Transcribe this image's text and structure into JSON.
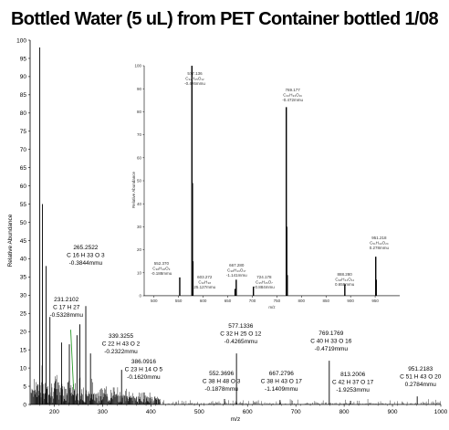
{
  "title": "Bottled Water (5 uL) from PET Container bottled 1/08",
  "chart_data": [
    {
      "type": "line",
      "title": "Bottled Water (5 uL) from PET Container bottled 1/08",
      "xlabel": "m/z",
      "ylabel": "Relative Abundance",
      "xlim": [
        150,
        1000
      ],
      "ylim": [
        0,
        100
      ],
      "xticks": [
        200,
        300,
        400,
        500,
        600,
        700,
        800,
        900,
        1000
      ],
      "yticks": [
        0,
        5,
        10,
        15,
        20,
        25,
        30,
        35,
        40,
        45,
        50,
        55,
        60,
        65,
        70,
        75,
        80,
        85,
        90,
        95,
        100
      ],
      "series": [
        {
          "peaks": [
            {
              "x": 170.0,
              "y": 98
            },
            {
              "x": 175.5,
              "y": 55
            },
            {
              "x": 183.0,
              "y": 38
            },
            {
              "x": 191.0,
              "y": 24
            },
            {
              "x": 215.0,
              "y": 17
            },
            {
              "x": 231.2102,
              "y": 16.5
            },
            {
              "x": 247.0,
              "y": 19
            },
            {
              "x": 253.0,
              "y": 22
            },
            {
              "x": 265.2522,
              "y": 27
            },
            {
              "x": 275.0,
              "y": 14
            },
            {
              "x": 339.3255,
              "y": 9.5
            },
            {
              "x": 386.0916,
              "y": 3.3
            },
            {
              "x": 552.3696,
              "y": 1.5
            },
            {
              "x": 577.1336,
              "y": 14
            },
            {
              "x": 667.2796,
              "y": 1.2
            },
            {
              "x": 769.1769,
              "y": 12
            },
            {
              "x": 813.2006,
              "y": 1.0
            },
            {
              "x": 951.2183,
              "y": 2.2
            }
          ]
        }
      ],
      "annotations": [
        {
          "x": 265.2522,
          "lines": [
            "265.2522",
            "C 16 H 33 O 3",
            "-0.3844mmu"
          ]
        },
        {
          "x": 231.2102,
          "lines": [
            "231.2102",
            "C 17 H 27",
            "-0.5328mmu"
          ]
        },
        {
          "x": 339.3255,
          "lines": [
            "339.3255",
            "C 22 H 43 O 2",
            "-0.2322mmu"
          ]
        },
        {
          "x": 386.0916,
          "lines": [
            "386.0916",
            "C 23 H 14 O 5",
            "-0.1620mmu"
          ]
        },
        {
          "x": 577.1336,
          "lines": [
            "577.1336",
            "C 32 H 25 O 12",
            "-0.4265mmu"
          ]
        },
        {
          "x": 552.3696,
          "lines": [
            "552.3696",
            "C 38 H 48 O 3",
            "-0.1878mmu"
          ]
        },
        {
          "x": 667.2796,
          "lines": [
            "667.2796",
            "C 38 H 43 O 17",
            "-1.1409mmu"
          ]
        },
        {
          "x": 769.1769,
          "lines": [
            "769.1769",
            "C 40 H 33 O 16",
            "-0.4719mmu"
          ]
        },
        {
          "x": 813.2006,
          "lines": [
            "813.2006",
            "C 42 H 37 O 17",
            "-1.9253mmu"
          ]
        },
        {
          "x": 951.2183,
          "lines": [
            "951.2183",
            "C 51 H 43 O 20",
            "0.2784mmu"
          ]
        }
      ]
    },
    {
      "type": "line",
      "xlabel": "m/z",
      "ylabel": "Relative Abundance",
      "xlim": [
        480,
        1000
      ],
      "ylim": [
        0,
        100
      ],
      "xticks": [
        500,
        550,
        600,
        650,
        700,
        750,
        800,
        850,
        900,
        950
      ],
      "yticks": [
        0,
        10,
        20,
        30,
        40,
        50,
        60,
        70,
        80,
        90,
        100
      ],
      "series": [
        {
          "peaks": [
            {
              "x": 577.136,
              "y": 100
            },
            {
              "x": 578.14,
              "y": 49
            },
            {
              "x": 579.14,
              "y": 15
            },
            {
              "x": 552.37,
              "y": 8
            },
            {
              "x": 665.0,
              "y": 3
            },
            {
              "x": 667.28,
              "y": 7
            },
            {
              "x": 702.27,
              "y": 4
            },
            {
              "x": 769.177,
              "y": 82
            },
            {
              "x": 770.18,
              "y": 30
            },
            {
              "x": 771.18,
              "y": 9
            },
            {
              "x": 888.28,
              "y": 5
            },
            {
              "x": 951.218,
              "y": 17
            },
            {
              "x": 952.22,
              "y": 7
            }
          ]
        }
      ],
      "annotations": [
        {
          "x": 577.136,
          "lines": [
            "577.136",
            "C₃₂H₂₅O₁₂",
            "-0.426mmu"
          ]
        },
        {
          "x": 552.37,
          "lines": [
            "552.370",
            "C₃₈H₄₈O₃",
            "-0.188mmu"
          ]
        },
        {
          "x": 603.272,
          "lines": [
            "603.272",
            "C₃₂H₃₈",
            "25.127mmu"
          ]
        },
        {
          "x": 667.28,
          "lines": [
            "667.280",
            "C₃₈H₄₃O₁₇",
            "-1.141mmu"
          ]
        },
        {
          "x": 724.178,
          "lines": [
            "724.178",
            "C₃₅H₂₆O₇",
            "-0.884mmu"
          ]
        },
        {
          "x": 769.177,
          "lines": [
            "769.177",
            "C₄₀H₃₃O₁₆",
            "-0.472mmu"
          ]
        },
        {
          "x": 888.28,
          "lines": [
            "888.280",
            "C₄₈H₄₄O₁₄",
            "0.659mmu"
          ]
        },
        {
          "x": 951.218,
          "lines": [
            "951.218",
            "C₅₁H₄₃O₂₀",
            "0.278mmu"
          ]
        }
      ]
    }
  ]
}
